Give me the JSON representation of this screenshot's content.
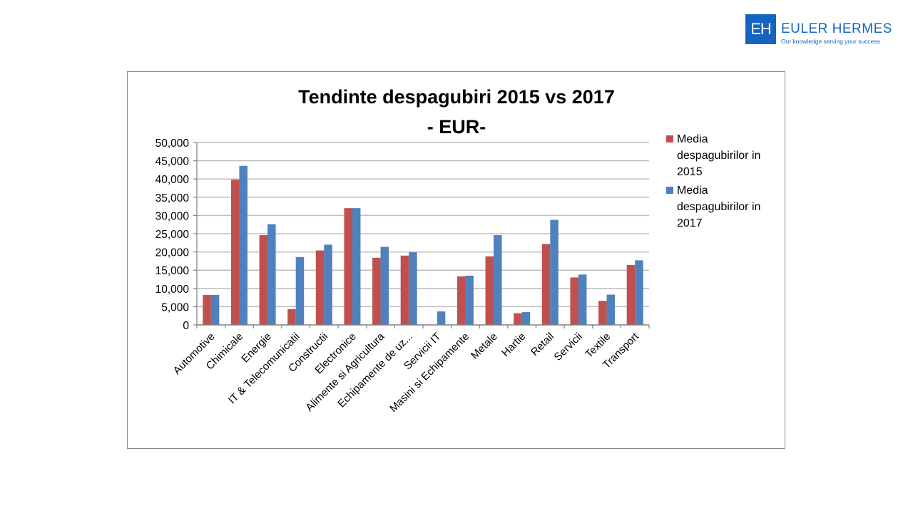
{
  "logo": {
    "mark": "EH",
    "name": "EULER HERMES",
    "tagline": "Our knowledge serving your success"
  },
  "chart_data": {
    "type": "bar",
    "title": "Tendinte despagubiri 2015 vs 2017",
    "subtitle": "- EUR-",
    "xlabel": "",
    "ylabel": "",
    "ylim": [
      0,
      50000
    ],
    "yticks": [
      "0",
      "5,000",
      "10,000",
      "15,000",
      "20,000",
      "25,000",
      "30,000",
      "35,000",
      "40,000",
      "45,000",
      "50,000"
    ],
    "grid": true,
    "legend_position": "right",
    "categories": [
      "Automotive",
      "Chimicale",
      "Energie",
      "IT & Telecomunicatii",
      "Constructii",
      "Electronice",
      "Alimente si Agricultura",
      "Echipamente de uz...",
      "Servicii IT",
      "Masini si Echipamente",
      "Metale",
      "Hartie",
      "Retail",
      "Servicii",
      "Textile",
      "Transport"
    ],
    "series": [
      {
        "name": "Media despagubirilor in 2015",
        "legend_lines": [
          "Media",
          "despagubirilor in",
          "2015"
        ],
        "color": "#c0504d",
        "values": [
          8200,
          39800,
          24600,
          4300,
          20400,
          32000,
          18400,
          19000,
          0,
          13300,
          18800,
          3200,
          22200,
          13000,
          6600,
          16400
        ]
      },
      {
        "name": "Media despagubirilor in 2017",
        "legend_lines": [
          "Media",
          "despagubirilor in",
          "2017"
        ],
        "color": "#4f81bd",
        "values": [
          8200,
          43600,
          27600,
          18600,
          22000,
          32000,
          21400,
          19900,
          3700,
          13500,
          24600,
          3500,
          28800,
          13800,
          8300,
          17700
        ]
      }
    ]
  }
}
